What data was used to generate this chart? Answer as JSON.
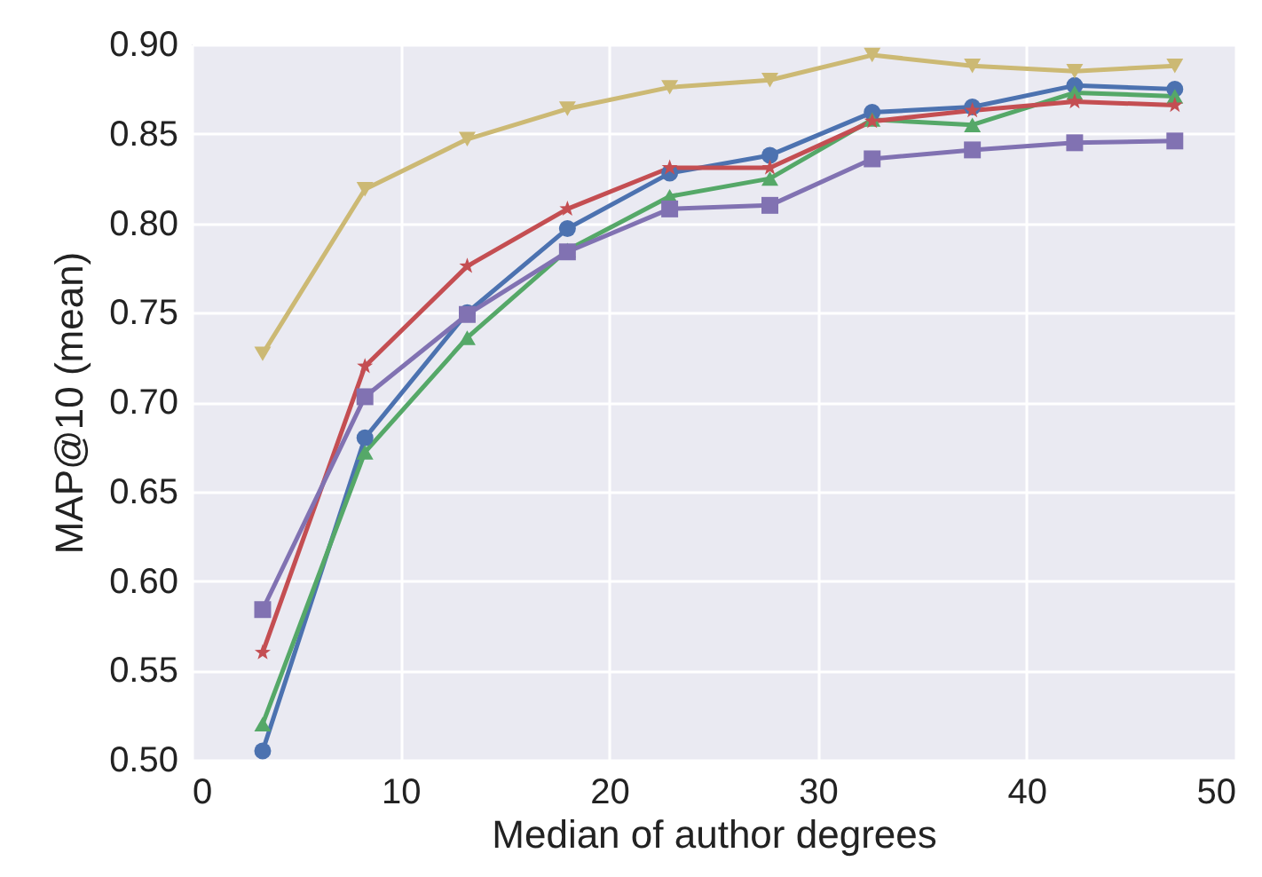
{
  "chart_data": {
    "type": "line",
    "xlabel": "Median of author degrees",
    "ylabel": "MAP@10 (mean)",
    "x": [
      3.4,
      8.3,
      13.2,
      18.0,
      22.9,
      27.7,
      32.6,
      37.4,
      42.3,
      47.1
    ],
    "series": [
      {
        "color": "#4c72b0",
        "marker": "circle",
        "values": [
          0.505,
          0.68,
          0.75,
          0.797,
          0.828,
          0.838,
          0.862,
          0.865,
          0.877,
          0.875
        ]
      },
      {
        "color": "#55a868",
        "marker": "triangle",
        "values": [
          0.52,
          0.672,
          0.736,
          0.785,
          0.815,
          0.825,
          0.858,
          0.855,
          0.873,
          0.871
        ]
      },
      {
        "color": "#c44e52",
        "marker": "star",
        "values": [
          0.56,
          0.72,
          0.776,
          0.808,
          0.831,
          0.831,
          0.857,
          0.863,
          0.868,
          0.866
        ]
      },
      {
        "color": "#8172b2",
        "marker": "square",
        "values": [
          0.584,
          0.703,
          0.749,
          0.784,
          0.808,
          0.81,
          0.836,
          0.841,
          0.845,
          0.846
        ]
      },
      {
        "color": "#ccb974",
        "marker": "triangle-down",
        "values": [
          0.727,
          0.819,
          0.847,
          0.864,
          0.876,
          0.88,
          0.894,
          0.888,
          0.885,
          0.888
        ]
      }
    ],
    "xlim": [
      0,
      50
    ],
    "xticks": [
      0,
      10,
      20,
      30,
      40,
      50
    ],
    "ylim": [
      0.5,
      0.9
    ],
    "yticks": [
      {
        "value": 0.5,
        "label": "0.50"
      },
      0.55,
      {
        "value": 0.6,
        "label": "0.60"
      },
      0.65,
      {
        "value": 0.7,
        "label": "0.70"
      },
      0.75,
      {
        "value": 0.8,
        "label": "0.80"
      },
      0.85,
      {
        "value": 0.9,
        "label": "0.90"
      }
    ],
    "grid": true,
    "legend": false,
    "line_style": "solid"
  }
}
